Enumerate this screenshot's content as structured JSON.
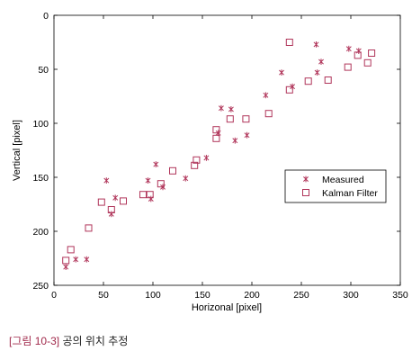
{
  "colors": {
    "marker": "#b0355a",
    "axis": "#000000",
    "caption_label": "#a0284a"
  },
  "chart_data": {
    "type": "scatter",
    "title": "",
    "xlabel": "Horizonal [pixel]",
    "ylabel": "Vertical [pixel]",
    "xlim": [
      0,
      350
    ],
    "ylim": [
      0,
      250
    ],
    "y_inverted": true,
    "grid": false,
    "xticks": [
      0,
      50,
      100,
      150,
      200,
      250,
      300,
      350
    ],
    "yticks": [
      0,
      50,
      100,
      150,
      200,
      250
    ],
    "legend_position": "center-right",
    "series": [
      {
        "name": "Measured",
        "marker": "asterisk",
        "points": [
          [
            12,
            233
          ],
          [
            22,
            226
          ],
          [
            33,
            226
          ],
          [
            53,
            153
          ],
          [
            58,
            184
          ],
          [
            62,
            169
          ],
          [
            95,
            153
          ],
          [
            98,
            170
          ],
          [
            103,
            138
          ],
          [
            110,
            159
          ],
          [
            133,
            151
          ],
          [
            154,
            132
          ],
          [
            166,
            109
          ],
          [
            169,
            86
          ],
          [
            179,
            87
          ],
          [
            183,
            116
          ],
          [
            195,
            111
          ],
          [
            214,
            74
          ],
          [
            230,
            53
          ],
          [
            241,
            66
          ],
          [
            265,
            27
          ],
          [
            266,
            53
          ],
          [
            270,
            43
          ],
          [
            298,
            31
          ],
          [
            308,
            33
          ]
        ]
      },
      {
        "name": "Kalman Filter",
        "marker": "square",
        "points": [
          [
            12,
            227
          ],
          [
            17,
            217
          ],
          [
            35,
            197
          ],
          [
            48,
            173
          ],
          [
            58,
            180
          ],
          [
            70,
            172
          ],
          [
            90,
            166
          ],
          [
            97,
            166
          ],
          [
            108,
            156
          ],
          [
            120,
            144
          ],
          [
            144,
            134
          ],
          [
            142,
            139
          ],
          [
            164,
            106
          ],
          [
            164,
            114
          ],
          [
            178,
            96
          ],
          [
            194,
            96
          ],
          [
            217,
            91
          ],
          [
            238,
            25
          ],
          [
            238,
            69
          ],
          [
            257,
            61
          ],
          [
            277,
            60
          ],
          [
            297,
            48
          ],
          [
            307,
            37
          ],
          [
            317,
            44
          ],
          [
            321,
            35
          ]
        ]
      }
    ]
  },
  "caption": {
    "label": "[그림 10-3]",
    "text": "공의 위치 추정"
  }
}
